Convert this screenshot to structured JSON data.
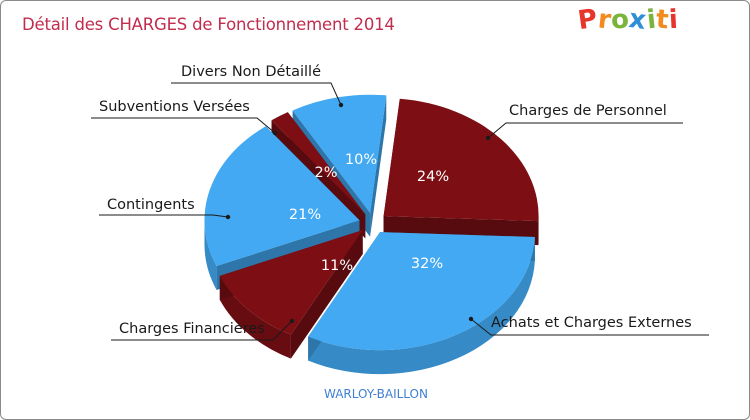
{
  "header": {
    "title": "Détail des CHARGES de Fonctionnement 2014",
    "logo_letters": [
      "P",
      "r",
      "o",
      "x",
      "i",
      "t",
      "i"
    ],
    "logo_colors": [
      "#e8352b",
      "#f28a1e",
      "#7ab43a",
      "#2e8fd6",
      "#7ab43a",
      "#f28a1e",
      "#e8352b"
    ]
  },
  "footer": {
    "commune": "WARLOY-BAILLON"
  },
  "chart_data": {
    "type": "pie",
    "title": "Détail des CHARGES de Fonctionnement 2014",
    "slices": [
      {
        "label": "Charges de Personnel",
        "value": 24,
        "pct_text": "24%",
        "color": "#7d0f14"
      },
      {
        "label": "Achats et Charges Externes",
        "value": 32,
        "pct_text": "32%",
        "color": "#42a9f2"
      },
      {
        "label": "Charges Financières",
        "value": 11,
        "pct_text": "11%",
        "color": "#7d0f14"
      },
      {
        "label": "Contingents",
        "value": 21,
        "pct_text": "21%",
        "color": "#42a9f2"
      },
      {
        "label": "Subventions Versées",
        "value": 2,
        "pct_text": "2%",
        "color": "#7d0f14"
      },
      {
        "label": "Divers Non Détaillé",
        "value": 10,
        "pct_text": "10%",
        "color": "#42a9f2"
      }
    ],
    "legend": "none"
  }
}
